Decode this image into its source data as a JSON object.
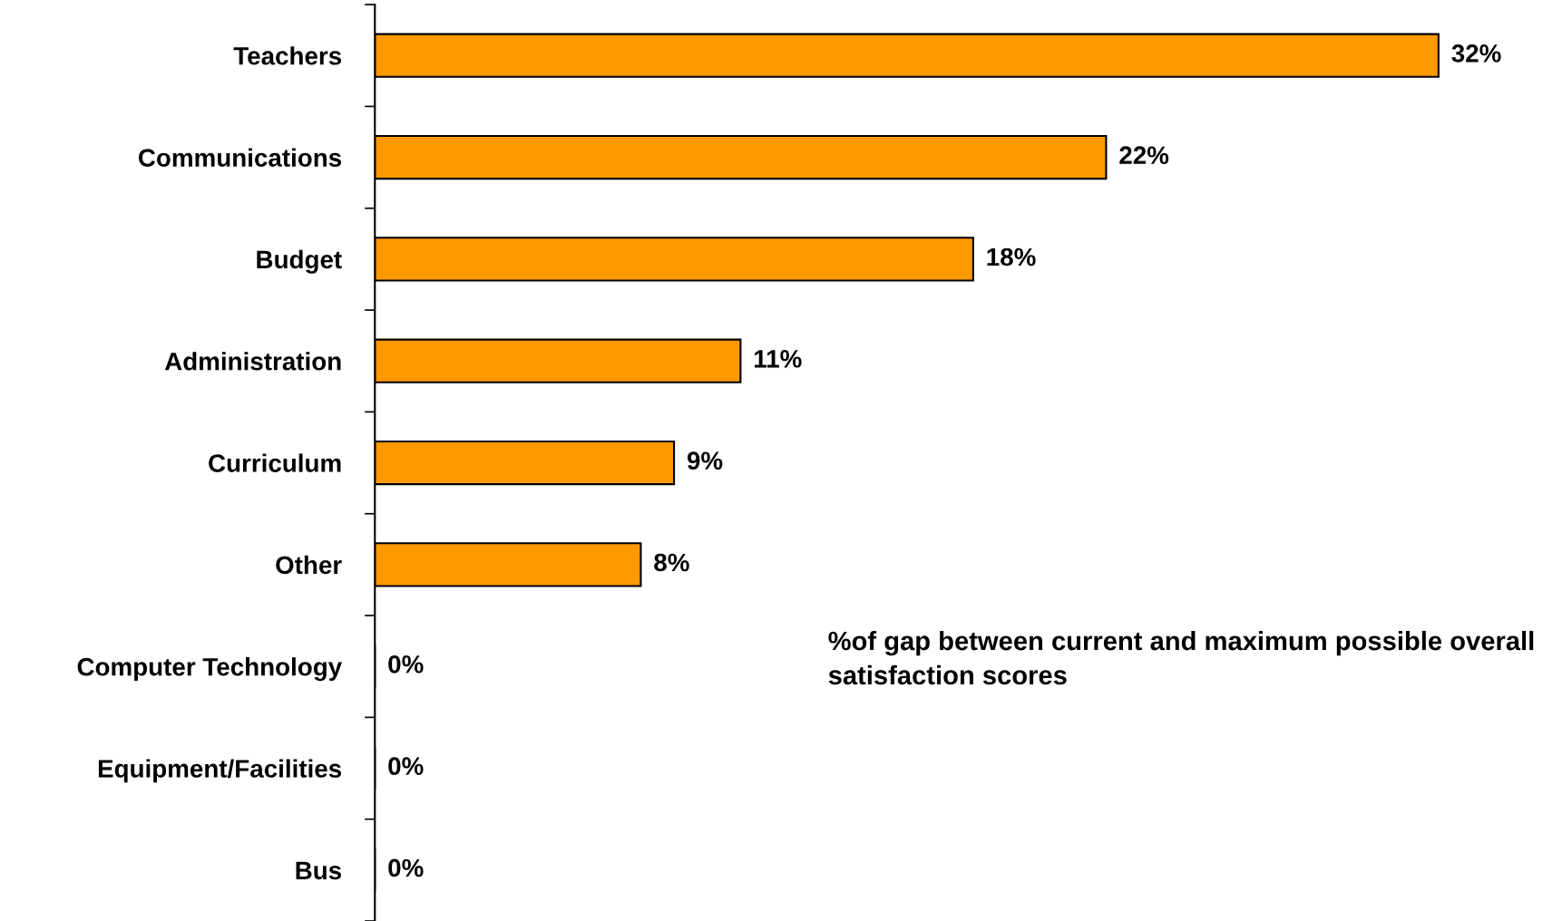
{
  "chart_data": {
    "type": "bar",
    "orientation": "horizontal",
    "categories": [
      "Teachers",
      "Communications",
      "Budget",
      "Administration",
      "Curriculum",
      "Other",
      "Computer Technology",
      "Equipment/Facilities",
      "Bus"
    ],
    "values": [
      32,
      22,
      18,
      11,
      9,
      8,
      0,
      0,
      0
    ],
    "value_labels": [
      "32%",
      "22%",
      "18%",
      "11%",
      "9%",
      "8%",
      "0%",
      "0%",
      "0%"
    ],
    "color": "#ff9900",
    "grid": false,
    "legend": false,
    "annotations": [
      "%of gap between current and maximum possible overall satisfaction scores"
    ]
  }
}
